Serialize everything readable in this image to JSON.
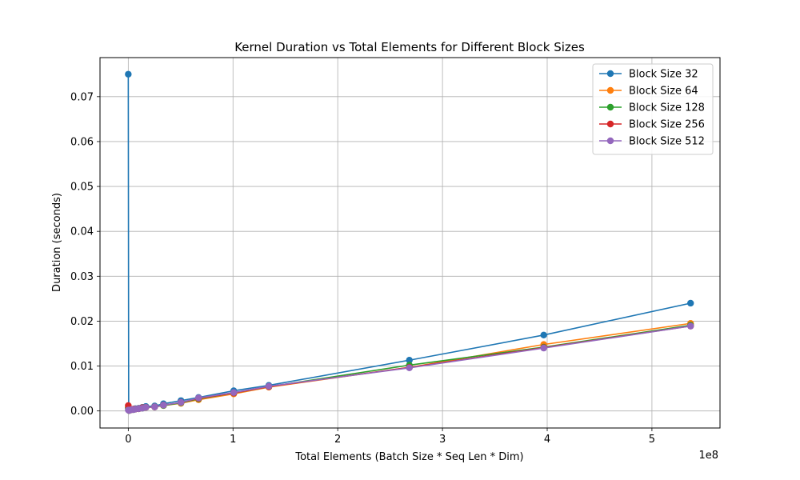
{
  "chart_data": {
    "type": "line",
    "title": "Kernel Duration vs Total Elements for Different Block Sizes",
    "xlabel": "Total Elements (Batch Size * Seq Len * Dim)",
    "ylabel": "Duration (seconds)",
    "x_offset_label": "1e8",
    "xlim": [
      -0.27,
      5.65
    ],
    "ylim": [
      -0.0038,
      0.0787
    ],
    "x_ticks": [
      0,
      1,
      2,
      3,
      4,
      5
    ],
    "x_tick_labels": [
      "0",
      "1",
      "2",
      "3",
      "4",
      "5"
    ],
    "y_ticks": [
      0.0,
      0.01,
      0.02,
      0.03,
      0.04,
      0.05,
      0.06,
      0.07
    ],
    "y_tick_labels": [
      "0.00",
      "0.01",
      "0.02",
      "0.03",
      "0.04",
      "0.05",
      "0.06",
      "0.07"
    ],
    "grid": true,
    "legend_position": "top-right",
    "x": [
      0.0,
      0.004,
      0.008,
      0.016,
      0.033,
      0.05,
      0.067,
      0.1,
      0.134,
      0.168,
      0.252,
      0.336,
      0.503,
      0.671,
      1.007,
      1.342,
      2.684,
      3.967,
      5.369
    ],
    "series": [
      {
        "name": "Block Size 32",
        "color": "#1f77b4",
        "values": [
          0.075,
          0.0003,
          0.0001,
          0.0002,
          0.0003,
          0.0004,
          0.0005,
          0.0006,
          0.0008,
          0.001,
          0.0011,
          0.0016,
          0.0023,
          0.003,
          0.0045,
          0.0057,
          0.0113,
          0.0169,
          0.024
        ]
      },
      {
        "name": "Block Size 64",
        "color": "#ff7f0e",
        "values": [
          0.0008,
          0.0003,
          0.0001,
          0.0002,
          0.0003,
          0.0004,
          0.0004,
          0.0005,
          0.0007,
          0.0008,
          0.0009,
          0.0012,
          0.0017,
          0.0025,
          0.0038,
          0.0053,
          0.0097,
          0.0148,
          0.0195
        ]
      },
      {
        "name": "Block Size 128",
        "color": "#2ca02c",
        "values": [
          0.0006,
          0.0003,
          0.0001,
          0.0002,
          0.0003,
          0.0003,
          0.0004,
          0.0005,
          0.0006,
          0.0008,
          0.0009,
          0.0012,
          0.0018,
          0.0027,
          0.004,
          0.0054,
          0.0102,
          0.0142,
          0.0191
        ]
      },
      {
        "name": "Block Size 256",
        "color": "#d62728",
        "values": [
          0.0012,
          0.0004,
          0.0002,
          0.0002,
          0.0003,
          0.0004,
          0.0004,
          0.0005,
          0.0007,
          0.0008,
          0.0009,
          0.0013,
          0.0019,
          0.0028,
          0.004,
          0.0054,
          0.0097,
          0.0141,
          0.0189
        ]
      },
      {
        "name": "Block Size 512",
        "color": "#9467bd",
        "values": [
          0.0002,
          0.0002,
          0.0001,
          0.0002,
          0.0003,
          0.0003,
          0.0004,
          0.0005,
          0.0006,
          0.0008,
          0.0009,
          0.0013,
          0.0019,
          0.0029,
          0.0041,
          0.0055,
          0.0096,
          0.014,
          0.0189
        ]
      }
    ]
  }
}
